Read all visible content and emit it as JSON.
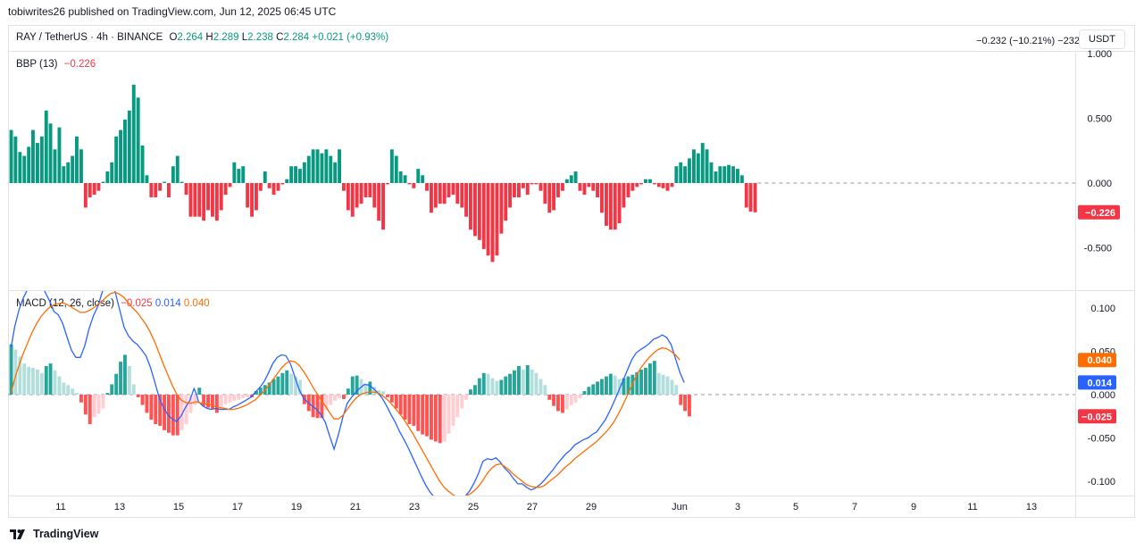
{
  "header": {
    "published": "tobiwrites26 published on TradingView.com, Jun 12, 2025 06:45 UTC"
  },
  "symbol": {
    "name": "RAY / TetherUS · 4h · BINANCE",
    "o_label": "O",
    "o": "2.264",
    "h_label": "H",
    "h": "2.289",
    "l_label": "L",
    "l": "2.238",
    "c_label": "C",
    "c": "2.284",
    "change": "+0.021 (+0.93%)"
  },
  "right_info": "−0.232 (−10.21%) −232",
  "currency": "USDT",
  "footer": {
    "brand": "TradingView"
  },
  "icons": {
    "logo": "tradingview-logo-icon"
  },
  "colors": {
    "up": "#089981",
    "down": "#f23645",
    "macd_pos_strong": "#26a69a",
    "macd_pos_weak": "#b2dfdb",
    "macd_neg_strong": "#ff5252",
    "macd_neg_weak": "#ffcdd2",
    "macd_line": "#2962ff",
    "signal_line": "#ff6d00"
  },
  "chart_data": [
    {
      "type": "bar",
      "name": "BBP",
      "legend": {
        "title": "BBP (13)",
        "value": "−0.226"
      },
      "ylim": [
        -0.75,
        1.0
      ],
      "y_ticks": [
        "1.000",
        "0.500",
        "0.000",
        "-0.500"
      ],
      "last_value_label": "−0.226",
      "values": [
        0.41,
        0.36,
        0.24,
        0.21,
        0.28,
        0.41,
        0.31,
        0.36,
        0.56,
        0.46,
        0.26,
        0.43,
        0.13,
        0.16,
        0.21,
        0.36,
        0.26,
        -0.19,
        -0.11,
        -0.09,
        -0.06,
        0.01,
        0.09,
        0.16,
        0.36,
        0.41,
        0.49,
        0.56,
        0.76,
        0.66,
        0.29,
        0.06,
        -0.11,
        -0.11,
        -0.06,
        0.01,
        -0.11,
        0.13,
        0.21,
        0.01,
        -0.09,
        -0.26,
        -0.26,
        -0.26,
        -0.29,
        -0.21,
        -0.26,
        -0.29,
        -0.21,
        -0.09,
        -0.03,
        0.16,
        0.11,
        0.13,
        -0.19,
        -0.26,
        -0.21,
        -0.06,
        0.09,
        -0.04,
        -0.09,
        -0.06,
        -0.01,
        0.03,
        0.13,
        0.13,
        0.11,
        0.16,
        0.21,
        0.26,
        0.26,
        0.23,
        0.26,
        0.21,
        0.16,
        0.26,
        -0.06,
        -0.21,
        -0.26,
        -0.19,
        -0.16,
        -0.11,
        -0.11,
        -0.19,
        -0.29,
        -0.36,
        -0.01,
        0.26,
        0.21,
        0.09,
        0.06,
        -0.01,
        -0.04,
        0.11,
        0.06,
        -0.06,
        -0.23,
        -0.19,
        -0.16,
        -0.16,
        -0.11,
        -0.09,
        -0.16,
        -0.19,
        -0.26,
        -0.36,
        -0.41,
        -0.44,
        -0.51,
        -0.56,
        -0.61,
        -0.56,
        -0.39,
        -0.29,
        -0.19,
        -0.11,
        -0.11,
        -0.04,
        -0.09,
        -0.01,
        -0.01,
        -0.06,
        -0.16,
        -0.23,
        -0.21,
        -0.11,
        -0.06,
        0.03,
        0.06,
        0.09,
        -0.06,
        -0.09,
        -0.03,
        -0.06,
        -0.11,
        -0.23,
        -0.33,
        -0.36,
        -0.36,
        -0.31,
        -0.19,
        -0.11,
        -0.06,
        -0.03,
        -0.01,
        0.03,
        0.03,
        -0.01,
        -0.03,
        -0.04,
        -0.06,
        -0.03,
        0.13,
        0.16,
        0.13,
        0.19,
        0.26,
        0.23,
        0.31,
        0.26,
        0.16,
        0.09,
        0.13,
        0.13,
        0.14,
        0.13,
        0.11,
        0.06,
        -0.19,
        -0.22,
        -0.226
      ]
    },
    {
      "type": "line",
      "name": "MACD",
      "legend": {
        "title": "MACD (12, 26, close)",
        "hist": "−0.025",
        "macd": "0.014",
        "signal": "0.040"
      },
      "ylim": [
        -0.118,
        0.123
      ],
      "y_ticks": [
        "0.100",
        "0.050",
        "0.000",
        "-0.050",
        "-0.100"
      ],
      "x_ticks": [
        "11",
        "13",
        "15",
        "17",
        "19",
        "21",
        "23",
        "25",
        "27",
        "29",
        "Jun",
        "3",
        "5",
        "7",
        "9",
        "11",
        "13"
      ],
      "histogram": [
        0.058,
        0.052,
        0.044,
        0.036,
        0.032,
        0.031,
        0.029,
        0.025,
        0.033,
        0.036,
        0.028,
        0.021,
        0.014,
        0.011,
        0.007,
        0.002,
        -0.009,
        -0.023,
        -0.034,
        -0.026,
        -0.022,
        -0.016,
        0.002,
        0.012,
        0.024,
        0.038,
        0.046,
        0.033,
        0.012,
        -0.003,
        -0.012,
        -0.021,
        -0.029,
        -0.034,
        -0.036,
        -0.041,
        -0.044,
        -0.047,
        -0.047,
        -0.041,
        -0.034,
        -0.021,
        -0.012,
        0.008,
        -0.013,
        -0.015,
        -0.016,
        -0.021,
        -0.016,
        -0.011,
        -0.009,
        -0.007,
        -0.006,
        -0.004,
        -0.003,
        -0.003,
        0.004,
        0.008,
        0.011,
        0.014,
        0.018,
        0.021,
        0.025,
        0.028,
        0.024,
        0.021,
        0.017,
        -0.011,
        -0.019,
        -0.026,
        -0.027,
        -0.027,
        -0.018,
        -0.012,
        -0.007,
        -0.004,
        -0.005,
        0.007,
        0.021,
        0.022,
        0.018,
        0.012,
        0.015,
        0.009,
        0.005,
        0.004,
        -0.003,
        -0.009,
        -0.016,
        -0.023,
        -0.029,
        -0.034,
        -0.036,
        -0.042,
        -0.046,
        -0.048,
        -0.052,
        -0.054,
        -0.056,
        -0.054,
        -0.045,
        -0.036,
        -0.026,
        -0.016,
        -0.006,
        0.006,
        0.011,
        0.019,
        0.025,
        0.024,
        0.019,
        0.016,
        0.017,
        0.021,
        0.024,
        0.028,
        0.033,
        0.029,
        0.034,
        0.029,
        0.025,
        0.018,
        0.011,
        -0.006,
        -0.013,
        -0.019,
        -0.021,
        -0.017,
        -0.012,
        -0.009,
        -0.004,
        0.004,
        0.009,
        0.012,
        0.015,
        0.018,
        0.021,
        0.024,
        0.022,
        0.018,
        0.019,
        0.021,
        0.023,
        0.026,
        0.029,
        0.031,
        0.036,
        0.039,
        0.025,
        0.023,
        0.021,
        0.017,
        0.011,
        -0.012,
        -0.019,
        -0.025
      ],
      "macd_x": [
        0.0,
        0.8,
        1.8,
        2.8,
        3.8,
        4.8,
        5.8,
        6.8,
        7.8,
        8.8,
        9.8,
        10.8,
        11.8,
        12.8,
        13.8,
        14.8,
        15.8,
        16.8,
        17.8,
        18.8,
        19.8,
        20.8,
        21.8,
        22.3,
        22.8,
        23.8,
        24.8,
        25.8,
        26.8,
        27.8,
        28.8,
        29.8,
        30.8,
        31.8,
        32.8,
        33.8,
        34.8,
        35.8,
        36.8,
        37.8,
        38.8,
        39.8,
        40.8,
        41.8,
        42.3,
        42.8,
        43.8,
        44.8,
        45.8,
        46.8,
        47.8,
        48.8,
        49.8,
        50.8,
        51.8,
        52.8,
        53.8,
        54.8,
        55.8,
        56.8,
        57.8,
        58.8,
        59.8,
        60.8,
        61.8,
        62.8,
        63.8,
        64.8,
        65.8,
        66.8,
        67.8,
        68.8,
        69.8,
        70.8,
        71.8,
        72.8,
        73.8,
        74.8,
        75.8,
        76.8,
        77.8,
        78.8,
        79.8,
        80.8,
        81.8,
        82.8,
        83.8,
        84.8,
        85.8,
        86.8,
        87.8,
        88.8,
        89.8,
        90.8,
        91.8,
        92.8,
        93.8,
        94.8,
        95.8,
        96.8,
        97.8,
        98.8,
        99.8,
        100.8,
        101.8,
        102.8,
        103.8,
        104.8,
        105.8,
        106.8,
        107.8,
        108.8,
        109.8,
        110.8,
        111.8,
        112.8,
        113.8,
        114.8,
        115.8,
        116.8,
        117.8,
        118.8,
        119.8,
        120.8,
        121.8,
        122.8,
        123.8,
        124.8,
        125.8,
        126.8,
        127.8,
        128.8,
        129.8,
        130.8,
        131.8,
        132.8,
        133.8,
        134.8,
        135.8,
        136.8,
        137.8,
        138.8,
        139.8,
        140.8,
        141.8,
        142.8,
        143.8,
        144.8,
        145.8,
        146.8,
        147.8,
        148.8,
        149.8,
        150.8,
        151.8,
        152.8,
        153.8,
        154.8,
        155.8,
        156.8
      ],
      "series": [
        {
          "name": "MACD",
          "color": "#2962ff",
          "values": [
            0.055,
            0.078,
            0.098,
            0.112,
            0.122,
            0.128,
            0.132,
            0.128,
            0.118,
            0.108,
            0.096,
            0.092,
            0.082,
            0.066,
            0.051,
            0.043,
            0.043,
            0.056,
            0.076,
            0.091,
            0.102,
            0.118,
            0.132,
            0.136,
            0.135,
            0.118,
            0.098,
            0.078,
            0.068,
            0.062,
            0.058,
            0.052,
            0.045,
            0.032,
            0.015,
            -0.003,
            -0.015,
            -0.023,
            -0.028,
            -0.031,
            -0.025,
            -0.015,
            -0.007,
            0.007,
            0.001,
            -0.008,
            -0.013,
            -0.016,
            -0.017,
            -0.016,
            -0.017,
            -0.017,
            -0.017,
            -0.014,
            -0.012,
            -0.009,
            -0.006,
            -0.003,
            0.003,
            0.008,
            0.015,
            0.025,
            0.036,
            0.043,
            0.046,
            0.045,
            0.036,
            0.021,
            0.006,
            -0.004,
            -0.009,
            -0.013,
            -0.017,
            -0.023,
            -0.032,
            -0.048,
            -0.063,
            -0.046,
            -0.026,
            -0.01,
            -0.003,
            0.003,
            0.008,
            0.012,
            0.011,
            0.007,
            0.002,
            -0.004,
            -0.013,
            -0.023,
            -0.032,
            -0.043,
            -0.052,
            -0.062,
            -0.073,
            -0.084,
            -0.095,
            -0.105,
            -0.113,
            -0.119,
            -0.124,
            -0.128,
            -0.131,
            -0.131,
            -0.128,
            -0.123,
            -0.117,
            -0.111,
            -0.102,
            -0.091,
            -0.077,
            -0.074,
            -0.075,
            -0.073,
            -0.078,
            -0.085,
            -0.09,
            -0.097,
            -0.103,
            -0.103,
            -0.107,
            -0.11,
            -0.108,
            -0.104,
            -0.099,
            -0.093,
            -0.087,
            -0.08,
            -0.074,
            -0.068,
            -0.064,
            -0.058,
            -0.055,
            -0.052,
            -0.05,
            -0.046,
            -0.043,
            -0.036,
            -0.029,
            -0.019,
            -0.008,
            0.004,
            0.016,
            0.028,
            0.04,
            0.048,
            0.052,
            0.055,
            0.059,
            0.064,
            0.066,
            0.069,
            0.066,
            0.058,
            0.042,
            0.026,
            0.014
          ]
        },
        {
          "name": "Signal",
          "color": "#ff6d00",
          "values": [
            0.002,
            0.018,
            0.034,
            0.048,
            0.06,
            0.072,
            0.082,
            0.09,
            0.096,
            0.101,
            0.104,
            0.105,
            0.106,
            0.104,
            0.101,
            0.098,
            0.095,
            0.095,
            0.097,
            0.1,
            0.104,
            0.108,
            0.113,
            0.115,
            0.117,
            0.118,
            0.116,
            0.112,
            0.106,
            0.1,
            0.095,
            0.088,
            0.081,
            0.072,
            0.061,
            0.048,
            0.035,
            0.023,
            0.011,
            0.001,
            -0.006,
            -0.009,
            -0.01,
            -0.009,
            -0.008,
            -0.009,
            -0.01,
            -0.011,
            -0.012,
            -0.014,
            -0.015,
            -0.016,
            -0.017,
            -0.017,
            -0.016,
            -0.014,
            -0.012,
            -0.009,
            -0.006,
            -0.001,
            0.004,
            0.01,
            0.017,
            0.024,
            0.031,
            0.036,
            0.039,
            0.038,
            0.034,
            0.027,
            0.019,
            0.01,
            0.002,
            -0.006,
            -0.013,
            -0.021,
            -0.028,
            -0.028,
            -0.024,
            -0.017,
            -0.01,
            -0.004,
            0.0,
            0.002,
            0.003,
            0.003,
            0.002,
            -0.001,
            -0.005,
            -0.01,
            -0.016,
            -0.022,
            -0.029,
            -0.037,
            -0.045,
            -0.054,
            -0.063,
            -0.072,
            -0.081,
            -0.09,
            -0.099,
            -0.106,
            -0.111,
            -0.115,
            -0.118,
            -0.118,
            -0.117,
            -0.115,
            -0.111,
            -0.106,
            -0.099,
            -0.091,
            -0.085,
            -0.081,
            -0.08,
            -0.083,
            -0.087,
            -0.092,
            -0.096,
            -0.1,
            -0.104,
            -0.106,
            -0.107,
            -0.107,
            -0.105,
            -0.101,
            -0.097,
            -0.093,
            -0.088,
            -0.083,
            -0.079,
            -0.074,
            -0.07,
            -0.066,
            -0.062,
            -0.058,
            -0.054,
            -0.049,
            -0.044,
            -0.038,
            -0.031,
            -0.022,
            -0.012,
            -0.001,
            0.01,
            0.021,
            0.03,
            0.037,
            0.043,
            0.048,
            0.052,
            0.054,
            0.053,
            0.05,
            0.046,
            0.04
          ]
        }
      ],
      "last_value_labels": {
        "signal": "0.040",
        "macd": "0.014",
        "hist": "−0.025"
      }
    }
  ]
}
